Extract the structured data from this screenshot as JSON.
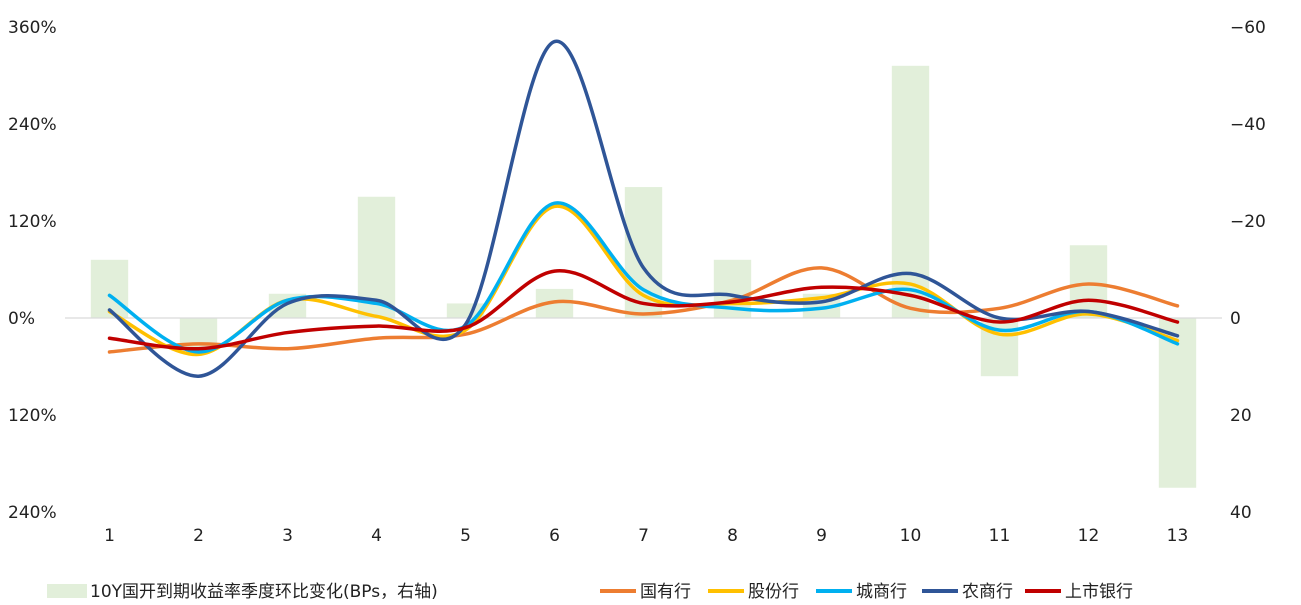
{
  "chart_data": {
    "type": "combo-bar-line",
    "title": "",
    "categories": [
      "1",
      "2",
      "3",
      "4",
      "5",
      "6",
      "7",
      "8",
      "9",
      "10",
      "11",
      "12",
      "13"
    ],
    "left_axis": {
      "range": [
        -240,
        360
      ],
      "ticks": [
        360,
        240,
        120,
        0,
        -120,
        -240
      ],
      "tick_labels": [
        "360%",
        "240%",
        "120%",
        "0%",
        "120%",
        "240%"
      ]
    },
    "right_axis": {
      "range": [
        40,
        -60
      ],
      "ticks": [
        -60,
        -40,
        -20,
        0,
        20,
        40
      ],
      "tick_labels": [
        "−60",
        "−40",
        "−20",
        "0",
        "20",
        "40"
      ]
    },
    "bar_series": {
      "name": "10Y国开到期收益率季度环比变化(BPs，右轴)",
      "color": "#e2efda",
      "values": [
        -12,
        6,
        -5,
        -25,
        -3,
        -6,
        -27,
        -12,
        -5,
        -52,
        12,
        -15,
        35
      ]
    },
    "line_series": [
      {
        "name": "国有行",
        "color": "#ed7d31",
        "values": [
          -42,
          -32,
          -38,
          -25,
          -20,
          20,
          5,
          22,
          62,
          12,
          12,
          42,
          15
        ]
      },
      {
        "name": "股份行",
        "color": "#ffc000",
        "values": [
          8,
          -45,
          22,
          2,
          -15,
          138,
          28,
          18,
          25,
          42,
          -20,
          5,
          -28
        ]
      },
      {
        "name": "城商行",
        "color": "#00b0f0",
        "values": [
          28,
          -42,
          22,
          18,
          -10,
          142,
          35,
          12,
          12,
          35,
          -15,
          8,
          -32
        ]
      },
      {
        "name": "农商行",
        "color": "#2f5597",
        "values": [
          10,
          -72,
          18,
          22,
          -8,
          342,
          62,
          28,
          20,
          55,
          0,
          8,
          -22
        ]
      },
      {
        "name": "上市银行",
        "color": "#c00000",
        "values": [
          -25,
          -38,
          -18,
          -10,
          -12,
          58,
          18,
          20,
          38,
          28,
          -5,
          22,
          -5
        ]
      }
    ],
    "legend_position": "bottom",
    "grid": false
  }
}
